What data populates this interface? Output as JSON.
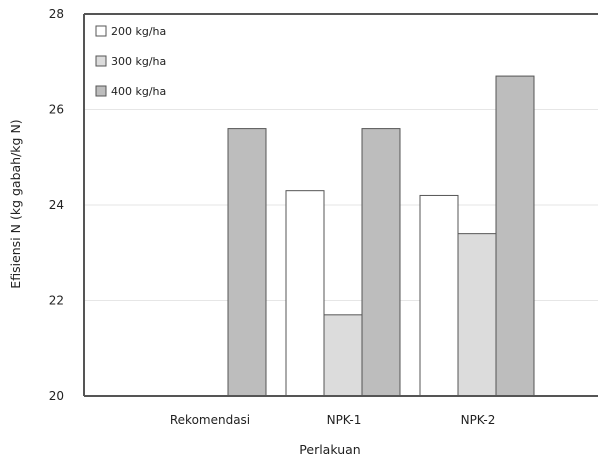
{
  "chart_data": {
    "type": "bar",
    "categories": [
      "Rekomendasi",
      "NPK-1",
      "NPK-2"
    ],
    "series": [
      {
        "name": "200 kg/ha",
        "color": "#ffffff",
        "values": [
          null,
          24.3,
          24.2
        ]
      },
      {
        "name": "300 kg/ha",
        "color": "#dcdcdc",
        "values": [
          null,
          21.7,
          23.4
        ]
      },
      {
        "name": "400 kg/ha",
        "color": "#bdbdbd",
        "values": [
          25.6,
          25.6,
          26.7
        ]
      }
    ],
    "title": "",
    "xlabel": "Perlakuan",
    "ylabel": "Efisiensi N (kg gabah/kg N)",
    "ylim": [
      20,
      28
    ],
    "yticks": [
      20,
      22,
      24,
      26,
      28
    ],
    "ytick_labels": [
      "20",
      "22",
      "24",
      "26",
      "28"
    ],
    "grid": true,
    "legend_position": "top-left"
  }
}
